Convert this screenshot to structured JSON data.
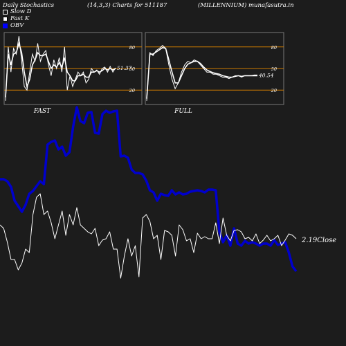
{
  "header": {
    "title": "Daily Stochastics",
    "params": "(14,3,3) Charts for 511187",
    "symbol": "(MILLENNIUM) munafasutra.in"
  },
  "legend": [
    {
      "label": "Slow  D",
      "color": "#ffffff",
      "style": "outline"
    },
    {
      "label": "Fast K",
      "color": "#ffffff",
      "style": "filled"
    },
    {
      "label": "OBV",
      "color": "#0000ff",
      "style": "filled"
    }
  ],
  "colors": {
    "background": "#1c1c1c",
    "level_line": "#cc7a00",
    "obv": "#0000cc",
    "close": "#ffffff"
  },
  "chart_data": [
    {
      "type": "line",
      "title": "FAST",
      "ylim": [
        0,
        100
      ],
      "yticks": [
        20,
        50,
        80
      ],
      "levels": [
        20,
        50,
        80
      ],
      "value_label": "51.37",
      "series": [
        {
          "name": "Fast K",
          "values": [
            5,
            80,
            45,
            78,
            70,
            95,
            60,
            25,
            20,
            45,
            70,
            60,
            85,
            60,
            70,
            75,
            55,
            40,
            62,
            50,
            65,
            45,
            80,
            20,
            40,
            25,
            35,
            45,
            40,
            45,
            30,
            35,
            50,
            45,
            48,
            42,
            50,
            52,
            45,
            53,
            45,
            51
          ]
        },
        {
          "name": "Slow  D",
          "values": [
            10,
            70,
            55,
            70,
            72,
            85,
            72,
            45,
            25,
            35,
            55,
            62,
            72,
            68,
            68,
            70,
            60,
            50,
            55,
            52,
            58,
            52,
            65,
            45,
            40,
            33,
            33,
            40,
            40,
            42,
            38,
            38,
            45,
            45,
            47,
            45,
            47,
            50,
            48,
            50,
            48,
            50
          ]
        }
      ]
    },
    {
      "type": "line",
      "title": "FULL",
      "ylim": [
        0,
        100
      ],
      "yticks": [
        20,
        50,
        80
      ],
      "levels": [
        20,
        50,
        80
      ],
      "value_label": "40.54",
      "series": [
        {
          "name": "Full K",
          "values": [
            5,
            72,
            68,
            75,
            78,
            82,
            78,
            55,
            35,
            22,
            30,
            45,
            55,
            60,
            58,
            62,
            60,
            55,
            50,
            45,
            45,
            42,
            42,
            40,
            38,
            38,
            36,
            38,
            40,
            40,
            38,
            40,
            40,
            40,
            41,
            41
          ]
        },
        {
          "name": "Full D",
          "values": [
            8,
            70,
            70,
            73,
            76,
            79,
            78,
            62,
            45,
            30,
            30,
            40,
            50,
            56,
            58,
            60,
            60,
            57,
            52,
            48,
            46,
            44,
            43,
            42,
            40,
            39,
            38,
            38,
            39,
            40,
            39,
            40,
            40,
            40,
            40,
            40
          ]
        }
      ]
    },
    {
      "type": "line",
      "series": [
        {
          "name": "OBV",
          "values": [
            259,
            259,
            262,
            270,
            290,
            298,
            306,
            296,
            280,
            276,
            269,
            262,
            266,
            209,
            205,
            203,
            216,
            212,
            225,
            220,
            183,
            155,
            175,
            178,
            163,
            162,
            192,
            193,
            165,
            160,
            163,
            161,
            160,
            226,
            225,
            228,
            245,
            250,
            250,
            252,
            261,
            275,
            278,
            290,
            280,
            282,
            283,
            275,
            281,
            278,
            281,
            280,
            277,
            276,
            275,
            276,
            278,
            274,
            274,
            275,
            335,
            350,
            340,
            355,
            330,
            352,
            355,
            348,
            352,
            350,
            352,
            355,
            352,
            352,
            355,
            347,
            354,
            352,
            350,
            365,
            385,
            392
          ]
        },
        {
          "name": "Close",
          "values": [
            325,
            330,
            350,
            375,
            375,
            390,
            380,
            360,
            365,
            310,
            285,
            280,
            310,
            305,
            322,
            345,
            325,
            305,
            340,
            310,
            325,
            300,
            325,
            330,
            335,
            338,
            330,
            355,
            347,
            345,
            335,
            360,
            360,
            402,
            370,
            345,
            370,
            355,
            400,
            315,
            310,
            320,
            345,
            340,
            375,
            333,
            335,
            340,
            370,
            325,
            332,
            348,
            345,
            365,
            337,
            345,
            342,
            345,
            345,
            322,
            352,
            315,
            340,
            348,
            333,
            332,
            335,
            345,
            343,
            348,
            338,
            352,
            347,
            340,
            348,
            345,
            340,
            355,
            347,
            338,
            340,
            345
          ]
        }
      ],
      "value_label": "2.19",
      "value_suffix": "Close"
    }
  ]
}
